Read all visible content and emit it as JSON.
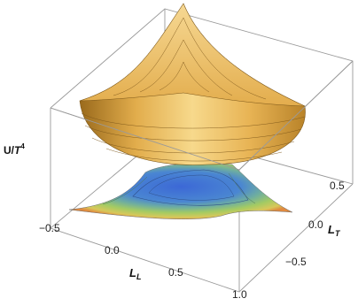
{
  "chart_data": {
    "type": "surface3d",
    "title": "",
    "z_axis": {
      "label_main": "U/",
      "label_var": "T",
      "label_sup": "4"
    },
    "x_axis": {
      "label_var": "L",
      "label_sub": "L",
      "ticks": [
        "−0.5",
        "0.0",
        "0.5",
        "1.0"
      ],
      "range": [
        -0.5,
        1.0
      ]
    },
    "y_axis": {
      "label_var": "L",
      "label_sub": "T",
      "ticks": [
        "−0.5",
        "0.0",
        "0.5"
      ],
      "range": [
        -0.75,
        0.75
      ]
    },
    "surface": {
      "shape": "bowl",
      "color": "#e7b352"
    },
    "contour_projection": {
      "colors": [
        "#3a6fd4",
        "#5a8ed0",
        "#78b3a6",
        "#9cca6d",
        "#c9d659",
        "#e09a4a"
      ]
    },
    "grid": false,
    "legend": "none"
  }
}
